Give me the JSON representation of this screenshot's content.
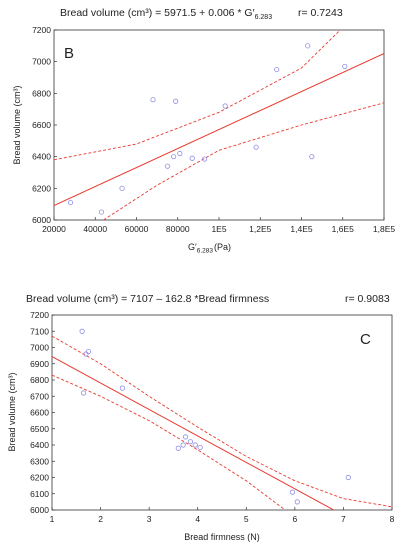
{
  "chart_data": [
    {
      "type": "scatter",
      "panel_label": "B",
      "title_left": "Bread volume  (cm³) = 5971.5 + 0.006 * G′",
      "title_sub": "6.283",
      "title_right": "r= 0.7243",
      "xlabel": "G′",
      "xlabel_sub": "6.283",
      "xlabel_unit": "(Pa)",
      "ylabel": "Bread volume (cm³)",
      "xlim": [
        20000,
        180000
      ],
      "ylim": [
        6000,
        7200
      ],
      "xticks": [
        20000,
        40000,
        60000,
        80000,
        100000,
        120000,
        140000,
        160000,
        180000
      ],
      "xtick_labels": [
        "20000",
        "40000",
        "60000",
        "80000",
        "1E5",
        "1,2E5",
        "1,4E5",
        "1,6E5",
        "1,8E5"
      ],
      "yticks": [
        6000,
        6200,
        6400,
        6600,
        6800,
        7000,
        7200
      ],
      "ytick_labels": [
        "6000",
        "6200",
        "6400",
        "6600",
        "6800",
        "7000",
        "7200"
      ],
      "points": [
        {
          "x": 28000,
          "y": 6110
        },
        {
          "x": 43000,
          "y": 6050
        },
        {
          "x": 53000,
          "y": 6200
        },
        {
          "x": 68000,
          "y": 6760
        },
        {
          "x": 75000,
          "y": 6340
        },
        {
          "x": 78000,
          "y": 6400
        },
        {
          "x": 79000,
          "y": 6750
        },
        {
          "x": 81000,
          "y": 6420
        },
        {
          "x": 87000,
          "y": 6390
        },
        {
          "x": 93000,
          "y": 6385
        },
        {
          "x": 103000,
          "y": 6720
        },
        {
          "x": 118000,
          "y": 6460
        },
        {
          "x": 128000,
          "y": 6950
        },
        {
          "x": 143000,
          "y": 7100
        },
        {
          "x": 145000,
          "y": 6400
        },
        {
          "x": 161000,
          "y": 6970
        }
      ],
      "fit": {
        "intercept": 5971.5,
        "slope": 0.006
      },
      "band_upper": [
        [
          20000,
          6380
        ],
        [
          60000,
          6480
        ],
        [
          100000,
          6680
        ],
        [
          140000,
          6960
        ],
        [
          158000,
          7190
        ]
      ],
      "band_lower": [
        [
          44000,
          6000
        ],
        [
          70000,
          6220
        ],
        [
          100000,
          6440
        ],
        [
          140000,
          6600
        ],
        [
          180000,
          6740
        ]
      ],
      "line_color": "#e8392e",
      "marker_color": "#8f8fe6"
    },
    {
      "type": "scatter",
      "panel_label": "C",
      "title_left": "Bread  volume (cm³) = 7107 – 162.8 *Bread firmness",
      "title_right": "r= 0.9083",
      "xlabel": "Bread firmness (N)",
      "ylabel": "Bread volume (cm³)",
      "xlim": [
        1,
        8
      ],
      "ylim": [
        6000,
        7200
      ],
      "xticks": [
        1,
        2,
        3,
        4,
        5,
        6,
        7,
        8
      ],
      "xtick_labels": [
        "1",
        "2",
        "3",
        "4",
        "5",
        "6",
        "7",
        "8"
      ],
      "yticks": [
        6000,
        6100,
        6200,
        6300,
        6400,
        6500,
        6600,
        6700,
        6800,
        6900,
        7000,
        7100,
        7200
      ],
      "ytick_labels": [
        "6000",
        "6100",
        "6200",
        "6300",
        "6400",
        "6500",
        "6600",
        "6700",
        "6800",
        "6900",
        "7000",
        "7100",
        "7200"
      ],
      "points": [
        {
          "x": 1.62,
          "y": 7100
        },
        {
          "x": 1.7,
          "y": 6960
        },
        {
          "x": 1.75,
          "y": 6975
        },
        {
          "x": 1.65,
          "y": 6720
        },
        {
          "x": 2.45,
          "y": 6750
        },
        {
          "x": 3.6,
          "y": 6380
        },
        {
          "x": 3.7,
          "y": 6400
        },
        {
          "x": 3.75,
          "y": 6450
        },
        {
          "x": 3.85,
          "y": 6420
        },
        {
          "x": 3.95,
          "y": 6400
        },
        {
          "x": 4.05,
          "y": 6385
        },
        {
          "x": 5.95,
          "y": 6110
        },
        {
          "x": 6.05,
          "y": 6050
        },
        {
          "x": 7.1,
          "y": 6200
        }
      ],
      "fit": {
        "intercept": 7107,
        "slope": -162.8
      },
      "band_upper": [
        [
          1,
          7070
        ],
        [
          2,
          6900
        ],
        [
          3,
          6700
        ],
        [
          4,
          6510
        ],
        [
          5,
          6330
        ],
        [
          6,
          6180
        ],
        [
          7,
          6070
        ],
        [
          8,
          6020
        ]
      ],
      "band_lower": [
        [
          1,
          6830
        ],
        [
          2,
          6700
        ],
        [
          3,
          6550
        ],
        [
          4,
          6370
        ],
        [
          5,
          6180
        ],
        [
          5.8,
          6000
        ]
      ],
      "line_color": "#e8392e",
      "marker_color": "#8f8fe6"
    }
  ]
}
